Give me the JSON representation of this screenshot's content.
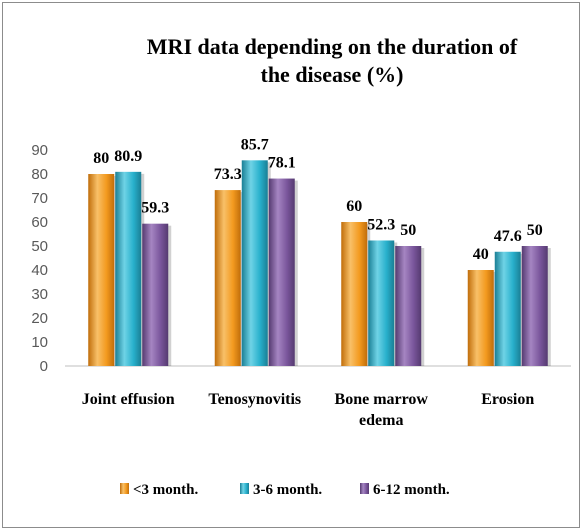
{
  "chart_data": {
    "type": "bar",
    "title_lines": [
      "MRI data depending on the duration of",
      "the disease (%)"
    ],
    "categories": [
      [
        "Joint effusion"
      ],
      [
        "Tenosynovitis"
      ],
      [
        "Bone marrow",
        "edema"
      ],
      [
        "Erosion"
      ]
    ],
    "series": [
      {
        "name": "<3 month.",
        "values": [
          80,
          73.3,
          60,
          40
        ],
        "labels": [
          "80",
          "73.3",
          "60",
          "40"
        ],
        "color": "#f39a1f",
        "color_light": "#f8c068",
        "color_dark": "#c06d0a"
      },
      {
        "name": "3-6 month.",
        "values": [
          80.9,
          85.7,
          52.3,
          47.6
        ],
        "labels": [
          "80.9",
          "85.7",
          "52.3",
          "47.6"
        ],
        "color": "#28b0cc",
        "color_light": "#6fd3e6",
        "color_dark": "#1a7f95"
      },
      {
        "name": "6-12 month.",
        "values": [
          59.3,
          78.1,
          50,
          50
        ],
        "labels": [
          "59.3",
          "78.1",
          "50",
          "50"
        ],
        "color": "#7a569c",
        "color_light": "#a585c2",
        "color_dark": "#553a70"
      }
    ],
    "yticks": [
      0,
      10,
      20,
      30,
      40,
      50,
      60,
      70,
      80,
      90
    ],
    "ylim": [
      0,
      90
    ],
    "grid": false,
    "legend_position": "bottom"
  }
}
